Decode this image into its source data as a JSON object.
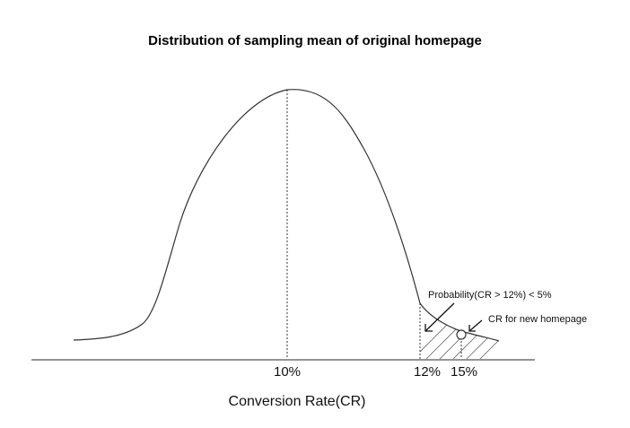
{
  "title": "Distribution of sampling mean of original homepage",
  "axis": {
    "label": "Conversion Rate(CR)",
    "ticks": [
      "10%",
      "12%",
      "15%"
    ]
  },
  "annotations": {
    "probability_note": "Probability(CR > 12%) < 5%",
    "new_homepage_note": "CR for new homepage"
  },
  "chart_data": {
    "type": "area",
    "title": "Distribution of sampling mean of original homepage",
    "xlabel": "Conversion Rate(CR)",
    "ylabel": "",
    "x_tick_labels": [
      "10%",
      "12%",
      "15%"
    ],
    "mean_marker": "10%",
    "shaded_tail_from": "12%",
    "point_marker": "15%",
    "grid": false,
    "legend": "none"
  },
  "colors": {
    "curve": "#333333",
    "axis": "#555555",
    "text": "#111111",
    "hatch": "#666666"
  }
}
